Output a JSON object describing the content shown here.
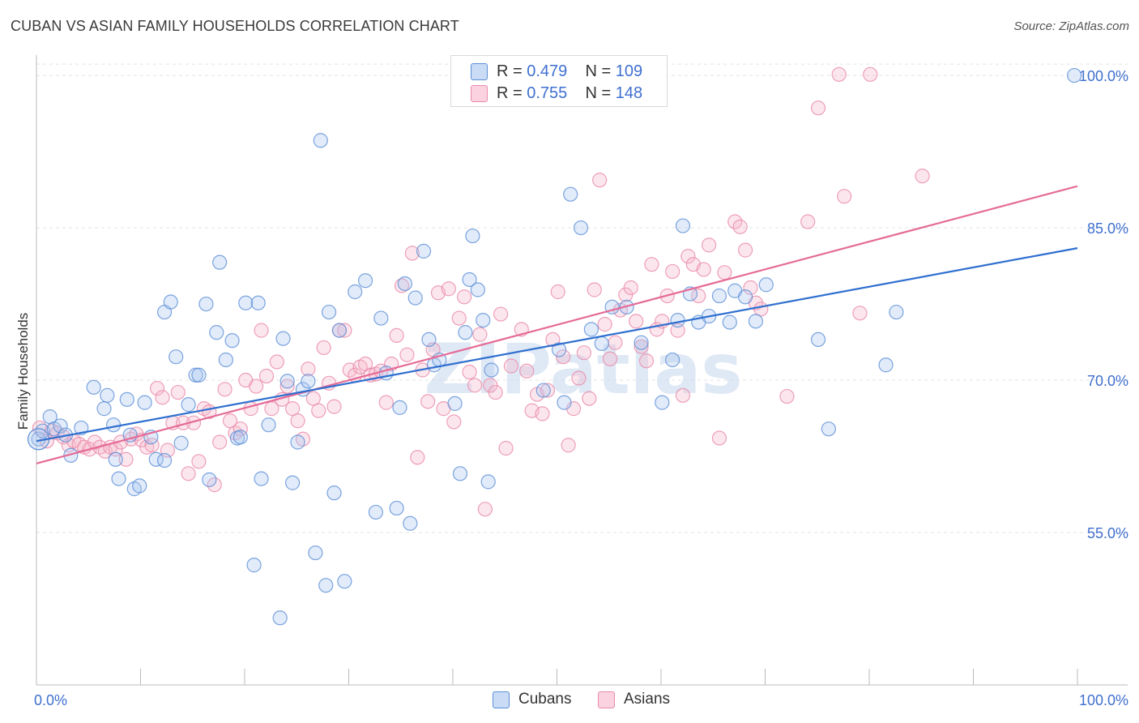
{
  "header": {
    "title": "CUBAN VS ASIAN FAMILY HOUSEHOLDS CORRELATION CHART",
    "source": "Source: ZipAtlas.com"
  },
  "watermark": "ZIPatlas",
  "legend": {
    "rows": [
      {
        "r_label": "R =",
        "r_value": "0.479",
        "n_label": "N =",
        "n_value": "109",
        "color": "#a9c7f0"
      },
      {
        "r_label": "R =",
        "r_value": "0.755",
        "n_label": "N =",
        "n_value": "148",
        "color": "#f6b7cc"
      }
    ]
  },
  "bottom_legend": [
    {
      "label": "Cubans",
      "color": "#a9c7f0"
    },
    {
      "label": "Asians",
      "color": "#f6b7cc"
    }
  ],
  "colors": {
    "cuban_stroke": "#5b8fd6",
    "cuban_line": "#2f6fcf",
    "asian_stroke": "#e88aa9",
    "asian_line": "#e56b97",
    "tick_text": "#3f6fcf",
    "grid": "#e3e3e3"
  },
  "chart_data": {
    "type": "scatter",
    "title": "CUBAN VS ASIAN FAMILY HOUSEHOLDS CORRELATION CHART",
    "xlabel": "",
    "ylabel": "Family Households",
    "xlim": [
      0,
      100
    ],
    "ylim": [
      40,
      102
    ],
    "x_tick_labels": [
      "0.0%",
      "100.0%"
    ],
    "y_ticks": [
      55,
      70,
      85,
      100
    ],
    "y_tick_labels": [
      "55.0%",
      "70.0%",
      "85.0%",
      "100.0%"
    ],
    "grid": true,
    "legend_position": "top-center",
    "series": [
      {
        "name": "Cubans",
        "r": 0.479,
        "n": 109,
        "trend": {
          "x0": 0,
          "y0": 64.0,
          "x1": 100,
          "y1": 83.0
        },
        "points": [
          [
            0.2,
            64.2
          ],
          [
            0.6,
            65.0
          ],
          [
            1.3,
            66.4
          ],
          [
            1.7,
            65.2
          ],
          [
            2.3,
            65.5
          ],
          [
            2.8,
            64.6
          ],
          [
            3.3,
            62.6
          ],
          [
            4.3,
            65.3
          ],
          [
            5.5,
            69.3
          ],
          [
            6.5,
            67.2
          ],
          [
            6.8,
            68.5
          ],
          [
            7.4,
            65.6
          ],
          [
            7.6,
            62.2
          ],
          [
            7.9,
            60.3
          ],
          [
            8.7,
            68.1
          ],
          [
            9.0,
            64.6
          ],
          [
            9.4,
            59.3
          ],
          [
            9.9,
            59.6
          ],
          [
            10.4,
            67.8
          ],
          [
            11.0,
            64.4
          ],
          [
            11.5,
            62.2
          ],
          [
            12.3,
            62.1
          ],
          [
            12.3,
            76.7
          ],
          [
            12.9,
            77.7
          ],
          [
            13.4,
            72.3
          ],
          [
            13.9,
            63.8
          ],
          [
            14.6,
            67.6
          ],
          [
            15.3,
            70.5
          ],
          [
            15.6,
            70.5
          ],
          [
            16.3,
            77.5
          ],
          [
            16.6,
            60.2
          ],
          [
            17.3,
            74.7
          ],
          [
            17.6,
            81.6
          ],
          [
            18.2,
            72.0
          ],
          [
            18.8,
            73.9
          ],
          [
            19.3,
            64.3
          ],
          [
            19.6,
            64.4
          ],
          [
            20.1,
            77.6
          ],
          [
            20.9,
            51.8
          ],
          [
            21.3,
            77.6
          ],
          [
            21.6,
            60.3
          ],
          [
            22.3,
            65.6
          ],
          [
            23.4,
            46.6
          ],
          [
            23.7,
            74.1
          ],
          [
            24.1,
            69.9
          ],
          [
            24.6,
            59.9
          ],
          [
            25.1,
            63.9
          ],
          [
            25.6,
            69.1
          ],
          [
            26.1,
            69.9
          ],
          [
            26.8,
            53.0
          ],
          [
            27.3,
            93.6
          ],
          [
            27.8,
            49.8
          ],
          [
            28.1,
            76.7
          ],
          [
            28.6,
            58.9
          ],
          [
            29.1,
            74.9
          ],
          [
            29.6,
            50.2
          ],
          [
            30.6,
            78.7
          ],
          [
            31.6,
            79.8
          ],
          [
            32.6,
            57.0
          ],
          [
            33.1,
            76.1
          ],
          [
            33.6,
            70.7
          ],
          [
            34.6,
            57.4
          ],
          [
            34.9,
            67.3
          ],
          [
            35.4,
            79.5
          ],
          [
            35.9,
            55.9
          ],
          [
            36.4,
            78.1
          ],
          [
            37.2,
            82.7
          ],
          [
            37.7,
            74.0
          ],
          [
            38.2,
            71.5
          ],
          [
            38.7,
            72.0
          ],
          [
            40.2,
            67.7
          ],
          [
            40.7,
            60.8
          ],
          [
            41.2,
            74.7
          ],
          [
            41.6,
            79.9
          ],
          [
            41.9,
            84.2
          ],
          [
            42.4,
            78.9
          ],
          [
            42.9,
            75.9
          ],
          [
            43.4,
            60.0
          ],
          [
            43.7,
            71.0
          ],
          [
            48.7,
            69.0
          ],
          [
            50.2,
            73.0
          ],
          [
            50.7,
            67.8
          ],
          [
            51.3,
            88.3
          ],
          [
            52.3,
            85.0
          ],
          [
            53.3,
            75.0
          ],
          [
            54.3,
            73.6
          ],
          [
            55.3,
            77.2
          ],
          [
            56.7,
            77.2
          ],
          [
            58.1,
            73.7
          ],
          [
            60.1,
            67.8
          ],
          [
            61.1,
            72.0
          ],
          [
            61.6,
            75.9
          ],
          [
            62.1,
            85.2
          ],
          [
            62.8,
            78.5
          ],
          [
            63.6,
            75.7
          ],
          [
            64.6,
            76.3
          ],
          [
            65.6,
            78.3
          ],
          [
            66.6,
            75.7
          ],
          [
            67.1,
            78.8
          ],
          [
            68.1,
            78.2
          ],
          [
            69.1,
            75.8
          ],
          [
            70.1,
            79.4
          ],
          [
            75.1,
            74.0
          ],
          [
            76.1,
            65.2
          ],
          [
            81.6,
            71.5
          ],
          [
            82.6,
            76.7
          ],
          [
            99.7,
            100.0
          ]
        ]
      },
      {
        "name": "Asians",
        "r": 0.755,
        "n": 148,
        "trend": {
          "x0": 0,
          "y0": 61.8,
          "x1": 100,
          "y1": 89.1
        },
        "points": [
          [
            0.3,
            65.3
          ],
          [
            1.0,
            64.0
          ],
          [
            1.5,
            65.0
          ],
          [
            2.0,
            64.8
          ],
          [
            2.6,
            64.4
          ],
          [
            3.1,
            63.6
          ],
          [
            3.6,
            64.0
          ],
          [
            4.1,
            63.7
          ],
          [
            4.6,
            63.4
          ],
          [
            5.1,
            63.2
          ],
          [
            5.6,
            63.9
          ],
          [
            6.1,
            63.4
          ],
          [
            6.6,
            63.0
          ],
          [
            7.1,
            63.4
          ],
          [
            7.6,
            63.2
          ],
          [
            8.1,
            63.9
          ],
          [
            8.6,
            62.2
          ],
          [
            9.1,
            64.2
          ],
          [
            9.6,
            64.7
          ],
          [
            10.1,
            64.1
          ],
          [
            10.6,
            63.4
          ],
          [
            11.1,
            63.6
          ],
          [
            11.6,
            69.2
          ],
          [
            12.1,
            68.3
          ],
          [
            12.6,
            63.1
          ],
          [
            13.1,
            65.8
          ],
          [
            13.6,
            68.8
          ],
          [
            14.1,
            65.8
          ],
          [
            14.6,
            60.8
          ],
          [
            15.1,
            65.8
          ],
          [
            15.6,
            62.0
          ],
          [
            16.1,
            67.2
          ],
          [
            16.6,
            66.9
          ],
          [
            17.1,
            59.7
          ],
          [
            17.6,
            63.9
          ],
          [
            18.1,
            69.1
          ],
          [
            18.6,
            66.0
          ],
          [
            19.1,
            64.8
          ],
          [
            19.6,
            65.2
          ],
          [
            20.1,
            70.0
          ],
          [
            20.6,
            67.2
          ],
          [
            21.1,
            69.4
          ],
          [
            21.6,
            74.9
          ],
          [
            22.1,
            70.4
          ],
          [
            22.6,
            67.2
          ],
          [
            23.1,
            71.8
          ],
          [
            23.6,
            68.1
          ],
          [
            24.1,
            69.4
          ],
          [
            24.6,
            67.2
          ],
          [
            25.1,
            66.0
          ],
          [
            25.6,
            64.2
          ],
          [
            26.1,
            71.1
          ],
          [
            26.6,
            68.2
          ],
          [
            27.1,
            67.0
          ],
          [
            27.6,
            73.2
          ],
          [
            28.1,
            69.7
          ],
          [
            28.6,
            67.4
          ],
          [
            29.1,
            74.9
          ],
          [
            29.6,
            74.9
          ],
          [
            30.1,
            71.0
          ],
          [
            30.6,
            70.5
          ],
          [
            31.1,
            71.3
          ],
          [
            31.6,
            71.6
          ],
          [
            32.1,
            70.5
          ],
          [
            32.6,
            70.6
          ],
          [
            33.1,
            70.9
          ],
          [
            33.6,
            67.8
          ],
          [
            34.1,
            71.6
          ],
          [
            34.6,
            74.4
          ],
          [
            35.1,
            79.3
          ],
          [
            35.6,
            72.5
          ],
          [
            36.1,
            82.5
          ],
          [
            36.6,
            62.4
          ],
          [
            37.1,
            71.0
          ],
          [
            37.6,
            67.9
          ],
          [
            38.1,
            73.0
          ],
          [
            38.6,
            78.6
          ],
          [
            39.1,
            67.2
          ],
          [
            39.6,
            79.0
          ],
          [
            40.1,
            65.9
          ],
          [
            40.6,
            76.1
          ],
          [
            41.1,
            78.2
          ],
          [
            41.6,
            70.8
          ],
          [
            42.1,
            69.5
          ],
          [
            42.6,
            74.5
          ],
          [
            43.1,
            57.3
          ],
          [
            43.6,
            69.5
          ],
          [
            44.1,
            68.8
          ],
          [
            44.6,
            76.5
          ],
          [
            45.1,
            63.3
          ],
          [
            45.6,
            71.4
          ],
          [
            46.6,
            75.0
          ],
          [
            47.1,
            70.9
          ],
          [
            47.6,
            67.0
          ],
          [
            48.1,
            68.6
          ],
          [
            48.6,
            66.7
          ],
          [
            49.1,
            69.0
          ],
          [
            49.6,
            74.0
          ],
          [
            50.1,
            78.7
          ],
          [
            50.6,
            72.3
          ],
          [
            51.1,
            63.6
          ],
          [
            51.6,
            67.2
          ],
          [
            52.1,
            70.2
          ],
          [
            52.6,
            72.7
          ],
          [
            53.1,
            68.2
          ],
          [
            53.6,
            78.9
          ],
          [
            54.1,
            89.7
          ],
          [
            54.6,
            75.5
          ],
          [
            55.1,
            72.1
          ],
          [
            55.6,
            73.7
          ],
          [
            56.1,
            76.9
          ],
          [
            56.6,
            78.4
          ],
          [
            57.1,
            79.1
          ],
          [
            57.6,
            75.8
          ],
          [
            58.1,
            73.3
          ],
          [
            58.6,
            71.9
          ],
          [
            59.1,
            81.4
          ],
          [
            59.6,
            75.0
          ],
          [
            60.1,
            75.8
          ],
          [
            60.6,
            78.3
          ],
          [
            61.1,
            80.7
          ],
          [
            61.6,
            74.9
          ],
          [
            62.1,
            68.5
          ],
          [
            62.6,
            82.2
          ],
          [
            63.1,
            81.4
          ],
          [
            63.6,
            78.3
          ],
          [
            64.1,
            80.9
          ],
          [
            64.6,
            83.3
          ],
          [
            65.6,
            64.3
          ],
          [
            66.1,
            80.6
          ],
          [
            67.1,
            85.6
          ],
          [
            67.6,
            85.1
          ],
          [
            68.1,
            82.8
          ],
          [
            68.6,
            79.1
          ],
          [
            69.1,
            77.6
          ],
          [
            69.6,
            77.0
          ],
          [
            72.1,
            68.4
          ],
          [
            74.1,
            85.6
          ],
          [
            75.1,
            96.8
          ],
          [
            77.1,
            100.1
          ],
          [
            77.6,
            88.1
          ],
          [
            79.1,
            76.6
          ],
          [
            80.1,
            100.1
          ],
          [
            85.1,
            90.1
          ]
        ]
      }
    ]
  }
}
